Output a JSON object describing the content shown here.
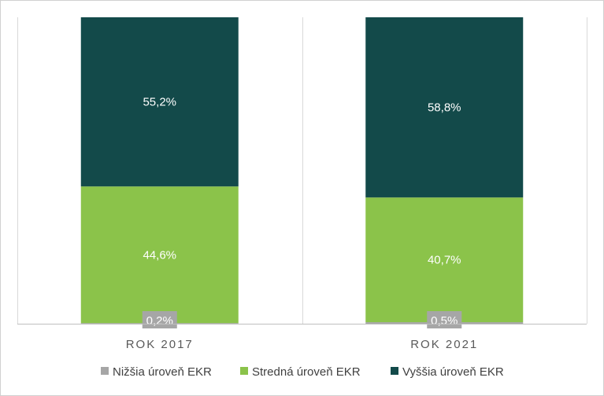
{
  "chart_data": {
    "type": "bar",
    "stacked": true,
    "normalized_percent": true,
    "categories": [
      "ROK 2017",
      "ROK 2021"
    ],
    "series": [
      {
        "name": "Nižšia úroveň EKR",
        "color": "#a6a6a6",
        "values": [
          0.2,
          0.5
        ],
        "labels": [
          "0,2%",
          "0,5%"
        ]
      },
      {
        "name": "Stredná úroveň EKR",
        "color": "#8bc34a",
        "values": [
          44.6,
          40.7
        ],
        "labels": [
          "44,6%",
          "40,7%"
        ]
      },
      {
        "name": "Vyššia úroveň EKR",
        "color": "#134a4a",
        "values": [
          55.2,
          58.8
        ],
        "labels": [
          "55,2%",
          "58,8%"
        ]
      }
    ],
    "ylim": [
      0,
      100
    ],
    "legend_position": "bottom",
    "title": "",
    "xlabel": "",
    "ylabel": ""
  }
}
